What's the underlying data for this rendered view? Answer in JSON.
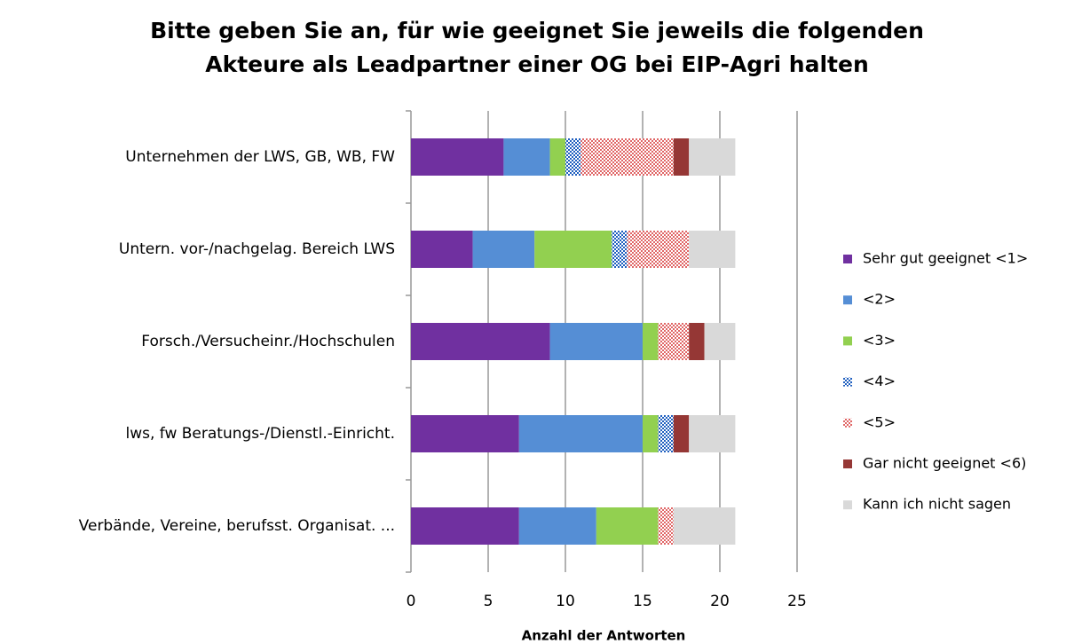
{
  "chart_data": {
    "type": "stacked_bar_horizontal",
    "title": [
      "Bitte geben Sie an, für wie geeignet Sie jeweils die folgenden",
      "Akteure als Leadpartner einer OG bei EIP-Agri halten"
    ],
    "x_label": "Anzahl der Antworten",
    "categories": [
      "Unternehmen der LWS, GB, WB, FW",
      "Untern. vor-/nachgelag. Bereich LWS",
      "Forsch./Versucheinr./Hochschulen",
      "lws, fw Beratungs-/Dienstl.-Einricht.",
      "Verbände, Vereine, berufsst. Organisat. ..."
    ],
    "series": [
      {
        "name": "Sehr gut geeignet <1>",
        "color": "#7030a0",
        "values": [
          6,
          4,
          9,
          7,
          7
        ]
      },
      {
        "name": "<2>",
        "color": "#558ed5",
        "values": [
          3,
          4,
          6,
          8,
          5
        ]
      },
      {
        "name": "<3>",
        "color": "#92d050",
        "values": [
          1,
          5,
          1,
          1,
          4
        ]
      },
      {
        "name": "<4>",
        "color": "#1f5fbf",
        "pattern": "dotted",
        "values": [
          1,
          1,
          0,
          1,
          0
        ]
      },
      {
        "name": "<5>",
        "color": "#e06666",
        "pattern": "dotted",
        "values": [
          6,
          4,
          2,
          0,
          1
        ]
      },
      {
        "name": "Gar nicht geeignet <6)",
        "color": "#953735",
        "values": [
          1,
          0,
          1,
          1,
          0
        ]
      },
      {
        "name": "Kann ich nicht sagen",
        "color": "#d9d9d9",
        "values": [
          3,
          3,
          2,
          3,
          4
        ]
      }
    ],
    "xlim": [
      0,
      25
    ],
    "xticks": [
      0,
      5,
      10,
      15,
      20,
      25
    ],
    "grid": true,
    "legend": "right"
  }
}
